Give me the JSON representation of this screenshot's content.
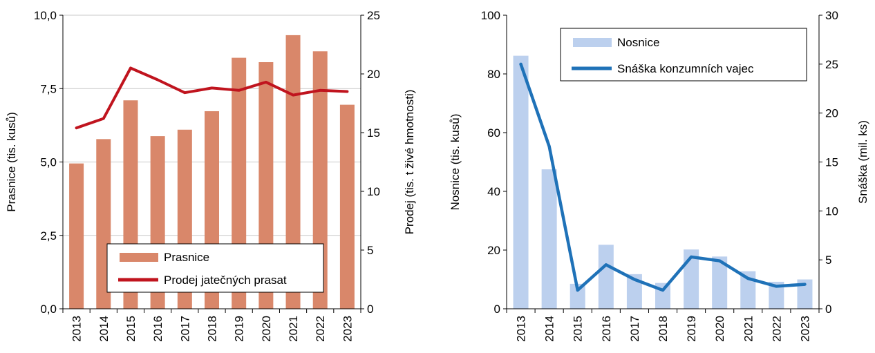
{
  "chart_data": [
    {
      "type": "bar+line",
      "categories": [
        "2013",
        "2014",
        "2015",
        "2016",
        "2017",
        "2018",
        "2019",
        "2020",
        "2021",
        "2022",
        "2023"
      ],
      "series": [
        {
          "name": "Prasnice",
          "kind": "bar",
          "axis": "left",
          "color": "#D9876A",
          "values": [
            4.95,
            5.78,
            7.1,
            5.88,
            6.1,
            6.73,
            8.55,
            8.4,
            9.32,
            8.77,
            6.95
          ]
        },
        {
          "name": "Prodej jatečných prasat",
          "kind": "line",
          "axis": "right",
          "color": "#C0141E",
          "values": [
            15.4,
            16.2,
            20.5,
            19.5,
            18.4,
            18.8,
            18.6,
            19.3,
            18.2,
            18.6,
            18.5
          ]
        }
      ],
      "ylabel": "Prasnice (tis. kusů)",
      "y2label": "Prodej (tis. t živé hmotnosti)",
      "ylim": [
        0,
        10
      ],
      "y2lim": [
        0,
        25
      ],
      "yticks": [
        "0,0",
        "2,5",
        "5,0",
        "7,5",
        "10,0"
      ],
      "y2ticks": [
        "0",
        "5",
        "10",
        "15",
        "20",
        "25"
      ],
      "grid": true,
      "legend_position": "bottom-right"
    },
    {
      "type": "bar+line",
      "categories": [
        "2013",
        "2014",
        "2015",
        "2016",
        "2017",
        "2018",
        "2019",
        "2020",
        "2021",
        "2022",
        "2023"
      ],
      "series": [
        {
          "name": "Nosnice",
          "kind": "bar",
          "axis": "left",
          "color": "#BCD0EE",
          "values": [
            86.2,
            47.5,
            8.5,
            21.8,
            11.8,
            8.8,
            20.2,
            17.8,
            12.8,
            9.2,
            10.0
          ]
        },
        {
          "name": "Snáška konzumních vajec",
          "kind": "line",
          "axis": "right",
          "color": "#1F72B8",
          "values": [
            25.0,
            16.6,
            1.9,
            4.5,
            3.0,
            1.9,
            5.3,
            4.9,
            3.1,
            2.3,
            2.5
          ]
        }
      ],
      "ylabel": "Nosnice (tis. kusů)",
      "y2label": "Snáška (mil. ks)",
      "ylim": [
        0,
        100
      ],
      "y2lim": [
        0,
        30
      ],
      "yticks": [
        "0",
        "20",
        "40",
        "60",
        "80",
        "100"
      ],
      "y2ticks": [
        "0",
        "5",
        "10",
        "15",
        "20",
        "25",
        "30"
      ],
      "grid": false,
      "legend_position": "top-right"
    }
  ]
}
